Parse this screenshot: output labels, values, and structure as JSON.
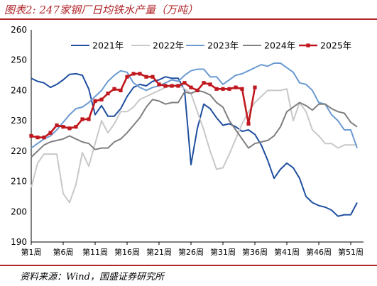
{
  "title": "图表2: 247家钢厂日均铁水产量（万吨）",
  "source": "资料来源：Wind，国盛证券研究所",
  "chart_data": {
    "type": "line",
    "ylim": [
      190,
      260
    ],
    "yticks": [
      190,
      200,
      210,
      220,
      230,
      240,
      250,
      260
    ],
    "xlim": [
      1,
      53
    ],
    "xticks": [
      {
        "week": 1,
        "label": "第1周"
      },
      {
        "week": 6,
        "label": "第6周"
      },
      {
        "week": 11,
        "label": "第11周"
      },
      {
        "week": 16,
        "label": "第16周"
      },
      {
        "week": 21,
        "label": "第21周"
      },
      {
        "week": 26,
        "label": "第26周"
      },
      {
        "week": 31,
        "label": "第31周"
      },
      {
        "week": 36,
        "label": "第36周"
      },
      {
        "week": 41,
        "label": "第41周"
      },
      {
        "week": 46,
        "label": "第46周"
      },
      {
        "week": 51,
        "label": "第51周"
      }
    ],
    "grid": false,
    "legend_position": "top",
    "series": [
      {
        "name": "2021年",
        "color": "#1f4fa0",
        "marker": false,
        "x": [
          1,
          2,
          3,
          4,
          5,
          6,
          7,
          8,
          9,
          10,
          11,
          12,
          13,
          14,
          15,
          16,
          17,
          18,
          19,
          20,
          21,
          22,
          23,
          24,
          25,
          26,
          27,
          28,
          29,
          30,
          31,
          32,
          33,
          34,
          35,
          36,
          37,
          38,
          39,
          40,
          41,
          42,
          43,
          44,
          45,
          46,
          47,
          48,
          49,
          50,
          51,
          52
        ],
        "y": [
          244,
          243,
          242.5,
          241,
          242,
          243.5,
          245.3,
          245.5,
          245,
          240.5,
          232,
          235,
          231.5,
          231.5,
          234,
          238,
          241,
          242,
          241.5,
          243,
          243.5,
          244.5,
          244,
          244,
          240,
          215.5,
          227.5,
          235.5,
          234,
          231,
          228.5,
          229,
          228,
          226.5,
          227,
          225.5,
          222,
          217,
          211,
          214,
          216,
          214.5,
          211,
          205,
          203,
          202,
          201.5,
          200.5,
          198.5,
          199,
          199,
          203
        ]
      },
      {
        "name": "2022年",
        "color": "#c8c8c8",
        "marker": false,
        "x": [
          1,
          2,
          3,
          4,
          5,
          6,
          7,
          8,
          9,
          10,
          11,
          12,
          13,
          14,
          15,
          16,
          17,
          18,
          19,
          20,
          21,
          22,
          23,
          24,
          25,
          26,
          27,
          28,
          29,
          30,
          31,
          32,
          33,
          34,
          35,
          36,
          37,
          38,
          39,
          40,
          41,
          42,
          43,
          44,
          45,
          46,
          47,
          48,
          49,
          50,
          51,
          52
        ],
        "y": [
          208,
          216,
          219,
          219,
          219,
          206,
          203,
          209,
          219.5,
          215,
          222.5,
          230,
          226,
          229,
          233,
          233,
          234.5,
          237,
          238,
          239,
          240,
          241,
          241.5,
          242,
          240.5,
          239,
          233,
          227,
          220,
          214,
          214.5,
          219,
          224,
          229,
          233,
          236,
          238,
          240,
          240,
          240,
          240.5,
          230,
          236,
          233,
          227,
          225,
          222.5,
          222.5,
          221,
          222,
          222,
          222
        ]
      },
      {
        "name": "2023年",
        "color": "#6b9bd1",
        "marker": false,
        "x": [
          1,
          2,
          3,
          4,
          5,
          6,
          7,
          8,
          9,
          10,
          11,
          12,
          13,
          14,
          15,
          16,
          17,
          18,
          19,
          20,
          21,
          22,
          23,
          24,
          25,
          26,
          27,
          28,
          29,
          30,
          31,
          32,
          33,
          34,
          35,
          36,
          37,
          38,
          39,
          40,
          41,
          42,
          43,
          44,
          45,
          46,
          47,
          48,
          49,
          50,
          51,
          52
        ],
        "y": [
          221,
          222.5,
          224,
          225,
          227,
          229.5,
          232,
          234,
          234.5,
          236,
          238,
          240,
          243,
          245,
          246.5,
          246,
          242.5,
          241,
          240,
          241,
          241.5,
          242.5,
          243.5,
          243,
          245,
          246.5,
          247,
          247,
          244.5,
          244.5,
          242,
          243.5,
          245,
          245.5,
          246.5,
          247.5,
          248.5,
          248,
          249,
          249,
          247.5,
          246,
          242.5,
          242,
          240,
          236,
          235.5,
          232,
          230,
          227,
          227,
          221
        ]
      },
      {
        "name": "2024年",
        "color": "#7f7f7f",
        "marker": false,
        "x": [
          1,
          2,
          3,
          4,
          5,
          6,
          7,
          8,
          9,
          10,
          11,
          12,
          13,
          14,
          15,
          16,
          17,
          18,
          19,
          20,
          21,
          22,
          23,
          24,
          25,
          26,
          27,
          28,
          29,
          30,
          31,
          32,
          33,
          34,
          35,
          36,
          37,
          38,
          39,
          40,
          41,
          42,
          43,
          44,
          45,
          46,
          47,
          48,
          49,
          50,
          51,
          52
        ],
        "y": [
          218,
          220,
          222,
          223,
          223.5,
          224,
          225,
          224,
          223,
          222.5,
          220.5,
          221,
          221,
          223,
          224,
          226,
          228.5,
          231,
          234.5,
          237,
          236.5,
          235.5,
          236,
          236,
          239.5,
          239,
          240,
          239.5,
          238.5,
          236,
          234.5,
          230,
          227,
          224,
          221,
          222.5,
          223,
          223.5,
          225,
          228,
          233,
          234.5,
          236,
          235,
          233.5,
          235.5,
          235.5,
          234,
          233,
          232.5,
          229.5,
          228
        ]
      },
      {
        "name": "2025年",
        "color": "#c0181e",
        "marker": true,
        "x": [
          1,
          2,
          3,
          4,
          5,
          6,
          7,
          8,
          9,
          10,
          11,
          12,
          13,
          14,
          15,
          16,
          17,
          18,
          19,
          20,
          21,
          22,
          23,
          24,
          25,
          26,
          27,
          28,
          29,
          30,
          31,
          32,
          33,
          34,
          35,
          36
        ],
        "y": [
          225,
          224.5,
          224.5,
          226,
          228.5,
          228,
          227.5,
          228,
          230.5,
          230.5,
          236.5,
          237,
          239,
          240.5,
          240,
          244.5,
          245.5,
          245.5,
          244.5,
          244.5,
          242,
          241.5,
          241.5,
          241.5,
          242.5,
          241,
          240,
          242.5,
          242,
          240.5,
          240.5,
          240.5,
          241,
          240.5,
          229,
          241
        ]
      }
    ]
  }
}
